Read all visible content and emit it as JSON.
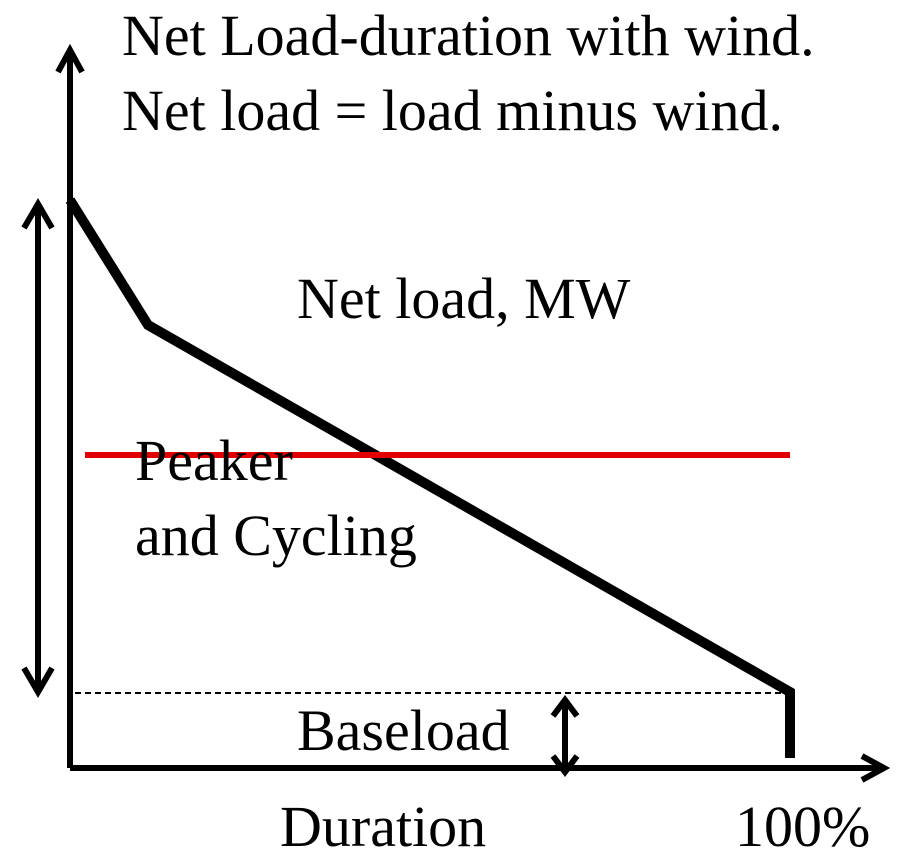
{
  "title": {
    "line1": "Net Load-duration with wind.",
    "line2": "Net load = load minus wind."
  },
  "labels": {
    "y_axis": "Net load, MW",
    "region1": "Peaker",
    "region2": "and Cycling",
    "base": "Baseload",
    "x_axis": "Duration",
    "x_end": "100%"
  }
}
